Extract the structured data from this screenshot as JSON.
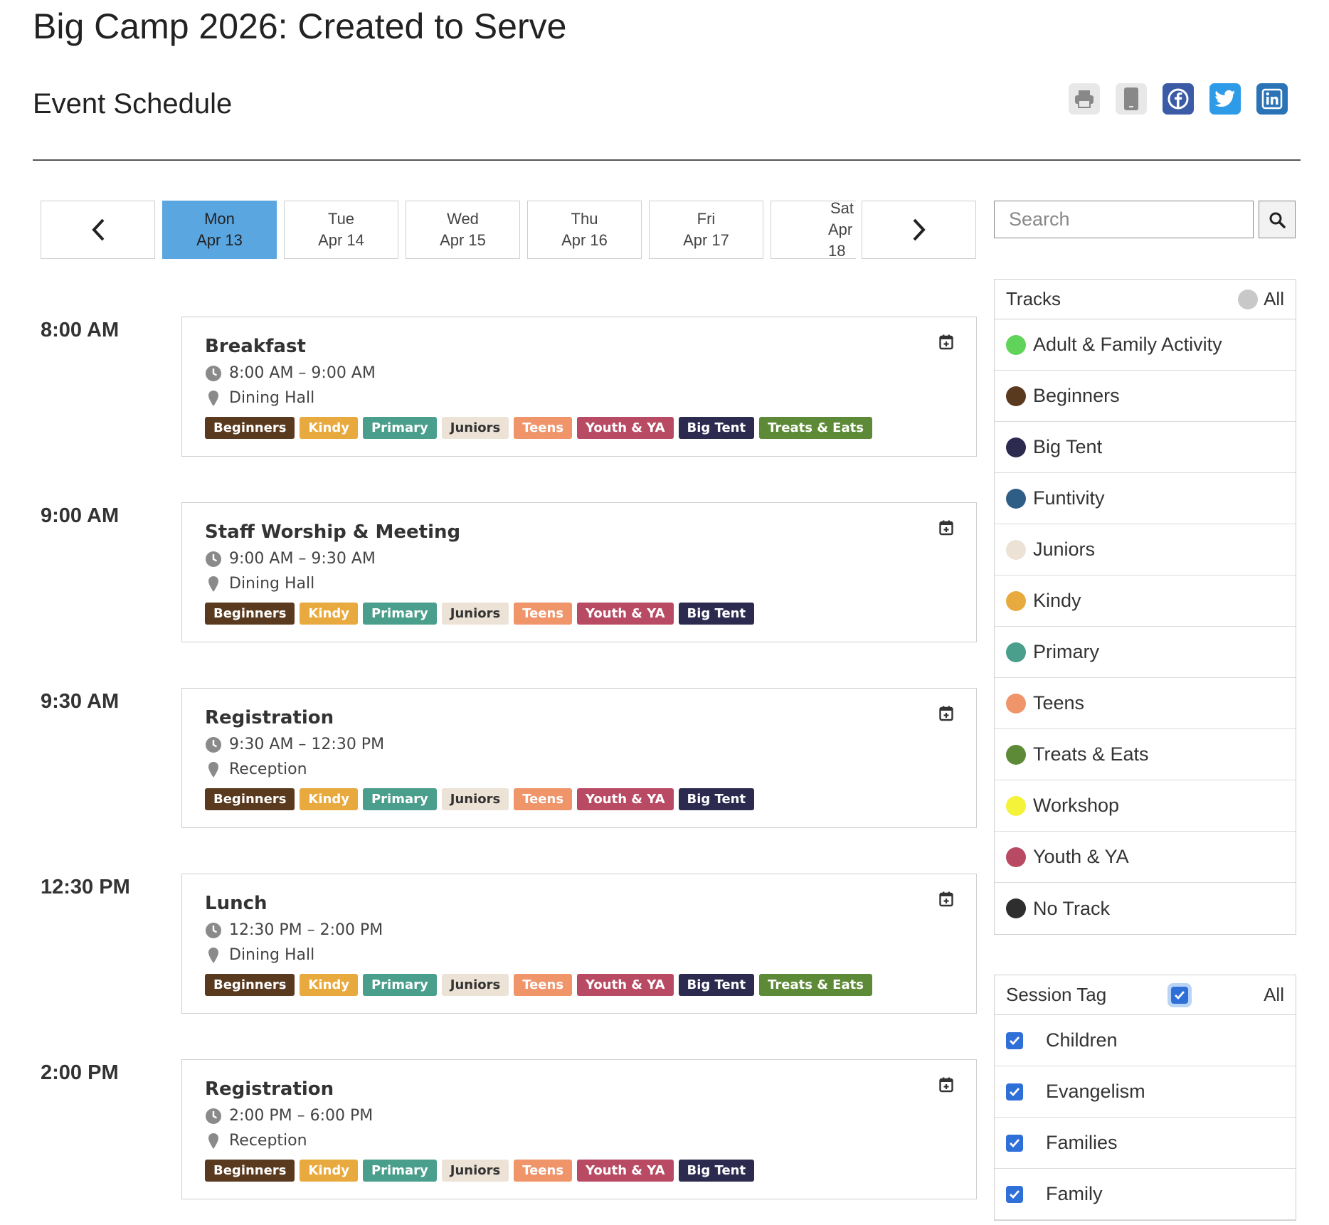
{
  "page": {
    "title": "Big Camp 2026: Created to Serve",
    "subtitle": "Event Schedule"
  },
  "share": {
    "icons": [
      "print-icon",
      "mobile-icon",
      "facebook-icon",
      "twitter-icon",
      "linkedin-icon"
    ]
  },
  "date_nav": {
    "days": [
      {
        "dow": "Mon",
        "date": "Apr 13",
        "active": true
      },
      {
        "dow": "Tue",
        "date": "Apr 14",
        "active": false
      },
      {
        "dow": "Wed",
        "date": "Apr 15",
        "active": false
      },
      {
        "dow": "Thu",
        "date": "Apr 16",
        "active": false
      },
      {
        "dow": "Fri",
        "date": "Apr 17",
        "active": false
      },
      {
        "dow": "Sat",
        "date": "Apr 18",
        "active": false
      }
    ]
  },
  "search": {
    "placeholder": "Search"
  },
  "track_colors": {
    "Beginners": "#5a3a1e",
    "Kindy": "#e8aa3e",
    "Primary": "#4a9e8c",
    "Juniors": "#ece3d6",
    "Teens": "#f0946a",
    "Youth & YA": "#b94a63",
    "Big Tent": "#2c2a4e",
    "Treats & Eats": "#5d8a37"
  },
  "schedule": [
    {
      "time": "8:00 AM",
      "title": "Breakfast",
      "range": "8:00 AM – 9:00 AM",
      "location": "Dining Hall",
      "tags": [
        "Beginners",
        "Kindy",
        "Primary",
        "Juniors",
        "Teens",
        "Youth & YA",
        "Big Tent",
        "Treats & Eats"
      ]
    },
    {
      "time": "9:00 AM",
      "title": "Staff Worship & Meeting",
      "range": "9:00 AM – 9:30 AM",
      "location": "Dining Hall",
      "tags": [
        "Beginners",
        "Kindy",
        "Primary",
        "Juniors",
        "Teens",
        "Youth & YA",
        "Big Tent"
      ]
    },
    {
      "time": "9:30 AM",
      "title": "Registration",
      "range": "9:30 AM – 12:30 PM",
      "location": "Reception",
      "tags": [
        "Beginners",
        "Kindy",
        "Primary",
        "Juniors",
        "Teens",
        "Youth & YA",
        "Big Tent"
      ]
    },
    {
      "time": "12:30 PM",
      "title": "Lunch",
      "range": "12:30 PM – 2:00 PM",
      "location": "Dining Hall",
      "tags": [
        "Beginners",
        "Kindy",
        "Primary",
        "Juniors",
        "Teens",
        "Youth & YA",
        "Big Tent",
        "Treats & Eats"
      ]
    },
    {
      "time": "2:00 PM",
      "title": "Registration",
      "range": "2:00 PM – 6:00 PM",
      "location": "Reception",
      "tags": [
        "Beginners",
        "Kindy",
        "Primary",
        "Juniors",
        "Teens",
        "Youth & YA",
        "Big Tent"
      ]
    }
  ],
  "tracks": {
    "header": "Tracks",
    "all_label": "All",
    "items": [
      {
        "name": "Adult & Family Activity",
        "color": "#5fd35a"
      },
      {
        "name": "Beginners",
        "color": "#5a3a1e"
      },
      {
        "name": "Big Tent",
        "color": "#2c2a4e"
      },
      {
        "name": "Funtivity",
        "color": "#2e5d86"
      },
      {
        "name": "Juniors",
        "color": "#ece3d6"
      },
      {
        "name": "Kindy",
        "color": "#e8aa3e"
      },
      {
        "name": "Primary",
        "color": "#4a9e8c"
      },
      {
        "name": "Teens",
        "color": "#f0946a"
      },
      {
        "name": "Treats & Eats",
        "color": "#5d8a37"
      },
      {
        "name": "Workshop",
        "color": "#f5f23a"
      },
      {
        "name": "Youth & YA",
        "color": "#b94a63"
      },
      {
        "name": "No Track",
        "color": "#2e2e2e"
      }
    ]
  },
  "session_tags": {
    "header": "Session Tag",
    "all_label": "All",
    "items": [
      "Children",
      "Evangelism",
      "Families",
      "Family"
    ]
  }
}
